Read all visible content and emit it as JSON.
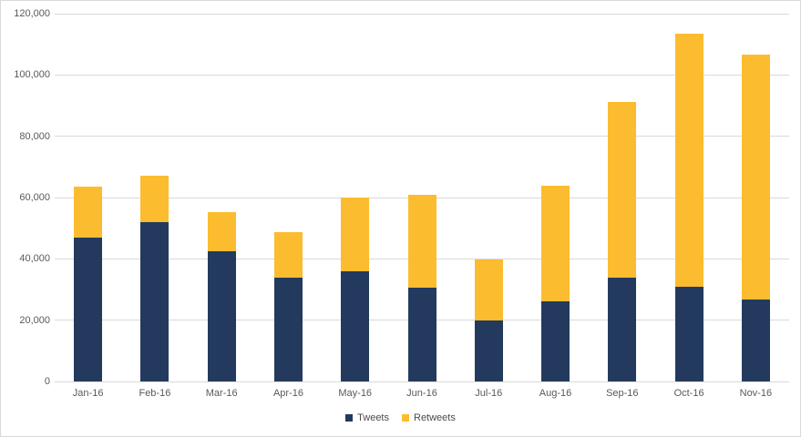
{
  "chart_data": {
    "type": "bar",
    "stacked": true,
    "title": "",
    "xlabel": "",
    "ylabel": "",
    "categories": [
      "Jan-16",
      "Feb-16",
      "Mar-16",
      "Apr-16",
      "May-16",
      "Jun-16",
      "Jul-16",
      "Aug-16",
      "Sep-16",
      "Oct-16",
      "Nov-16"
    ],
    "series": [
      {
        "name": "Tweets",
        "color": "#233A5E",
        "values": [
          47000,
          52000,
          42600,
          34000,
          36000,
          30600,
          19800,
          26000,
          34000,
          30800,
          26700
        ]
      },
      {
        "name": "Retweets",
        "color": "#FCBC2F",
        "values": [
          16500,
          15000,
          12600,
          14600,
          24000,
          30400,
          20000,
          38000,
          57300,
          82800,
          79800
        ]
      }
    ],
    "totals": [
      63500,
      67000,
      55200,
      48600,
      60000,
      61000,
      39800,
      64000,
      91300,
      113600,
      106500
    ],
    "ylim": [
      0,
      120000
    ],
    "ytick_step": 20000,
    "ytick_labels": [
      "0",
      "20,000",
      "40,000",
      "60,000",
      "80,000",
      "100,000",
      "120,000"
    ],
    "grid": true,
    "legend_position": "bottom",
    "colors": {
      "axis_text": "#595959",
      "legend_text": "#4a4a4a",
      "gridline": "#D9D9D9",
      "chart_border": "#D9D9D9",
      "background": "#FFFFFF"
    }
  }
}
